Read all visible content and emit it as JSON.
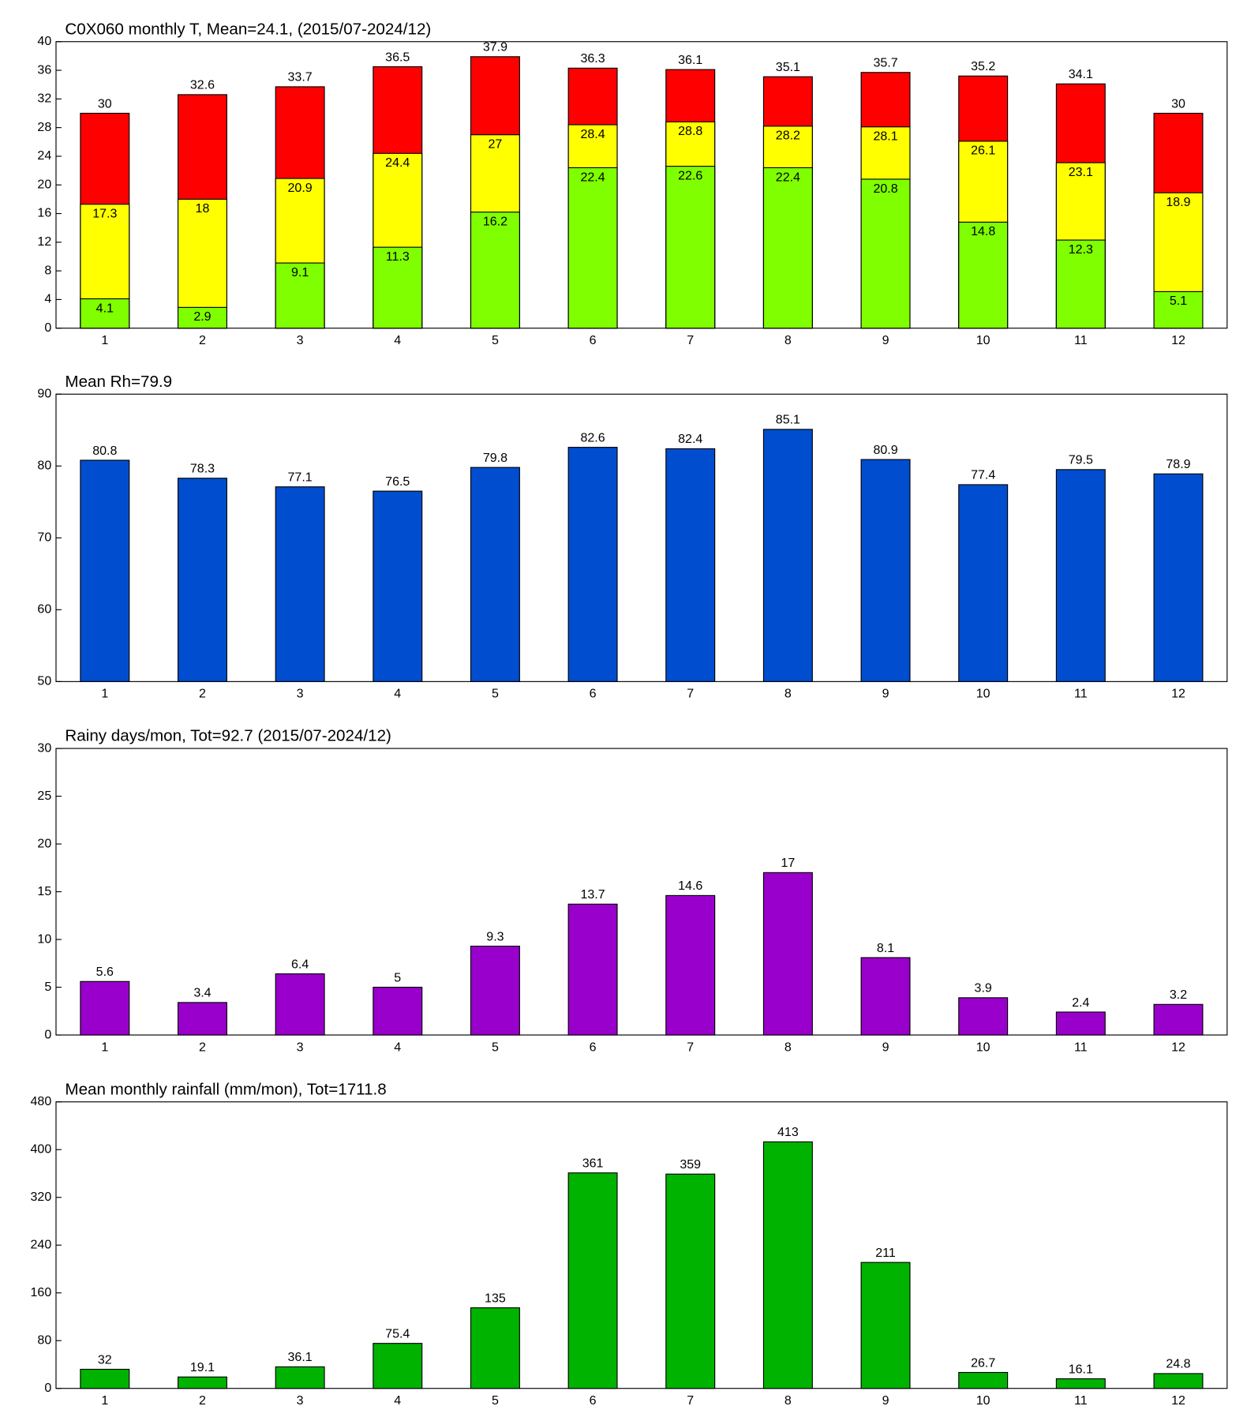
{
  "chart_data": [
    {
      "type": "bar",
      "title": "C0X060 monthly T, Mean=24.1, (2015/07-2024/12)",
      "categories": [
        "1",
        "2",
        "3",
        "4",
        "5",
        "6",
        "7",
        "8",
        "9",
        "10",
        "11",
        "12"
      ],
      "series": [
        {
          "color": "#80ff00",
          "values": [
            4.1,
            2.9,
            9.1,
            11.3,
            16.2,
            22.4,
            22.6,
            22.4,
            20.8,
            14.8,
            12.3,
            5.1
          ]
        },
        {
          "color": "#ffff00",
          "values": [
            17.3,
            18,
            20.9,
            24.4,
            27,
            28.4,
            28.8,
            28.2,
            28.1,
            26.1,
            23.1,
            18.9
          ]
        },
        {
          "color": "#ff0000",
          "values": [
            30,
            32.6,
            33.7,
            36.5,
            37.9,
            36.3,
            36.1,
            35.1,
            35.7,
            35.2,
            34.1,
            30
          ]
        }
      ],
      "ylim": [
        0,
        40
      ],
      "yticks": [
        0,
        4,
        8,
        12,
        16,
        20,
        24,
        28,
        32,
        36,
        40
      ]
    },
    {
      "type": "bar",
      "title": "Mean Rh=79.9",
      "categories": [
        "1",
        "2",
        "3",
        "4",
        "5",
        "6",
        "7",
        "8",
        "9",
        "10",
        "11",
        "12"
      ],
      "values": [
        80.8,
        78.3,
        77.1,
        76.5,
        79.8,
        82.6,
        82.4,
        85.1,
        80.9,
        77.4,
        79.5,
        78.9
      ],
      "color": "#004ecf",
      "ylim": [
        50,
        90
      ],
      "yticks": [
        50,
        60,
        70,
        80,
        90
      ]
    },
    {
      "type": "bar",
      "title": "Rainy days/mon, Tot=92.7 (2015/07-2024/12)",
      "categories": [
        "1",
        "2",
        "3",
        "4",
        "5",
        "6",
        "7",
        "8",
        "9",
        "10",
        "11",
        "12"
      ],
      "values": [
        5.6,
        3.4,
        6.4,
        5,
        9.3,
        13.7,
        14.6,
        17,
        8.1,
        3.9,
        2.4,
        3.2
      ],
      "color": "#9900cc",
      "ylim": [
        0,
        30
      ],
      "yticks": [
        0,
        5,
        10,
        15,
        20,
        25,
        30
      ]
    },
    {
      "type": "bar",
      "title": "Mean monthly rainfall (mm/mon), Tot=1711.8",
      "categories": [
        "1",
        "2",
        "3",
        "4",
        "5",
        "6",
        "7",
        "8",
        "9",
        "10",
        "11",
        "12"
      ],
      "values": [
        32,
        19.1,
        36.1,
        75.4,
        135,
        361,
        359,
        413,
        211,
        26.7,
        16.1,
        24.8
      ],
      "color": "#00b300",
      "ylim": [
        0,
        480
      ],
      "yticks": [
        0,
        80,
        160,
        240,
        320,
        400,
        480
      ]
    }
  ]
}
